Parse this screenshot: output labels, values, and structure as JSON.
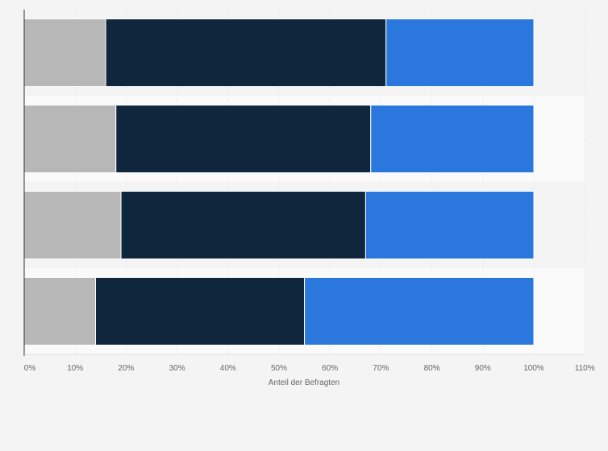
{
  "chart_data": {
    "type": "bar",
    "orientation": "horizontal",
    "stacked": true,
    "categories": [
      "",
      "",
      "",
      ""
    ],
    "series": [
      {
        "values": [
          16,
          18,
          19,
          14
        ],
        "color": "#b7b7b7"
      },
      {
        "values": [
          55,
          50,
          48,
          41
        ],
        "color": "#0f263d"
      },
      {
        "values": [
          29,
          32,
          33,
          45
        ],
        "color": "#2a78de"
      }
    ],
    "xlabel": "Anteil der Befragten",
    "ylabel": "",
    "xlim": [
      0,
      110
    ],
    "xticks": [
      "0%",
      "10%",
      "20%",
      "30%",
      "40%",
      "50%",
      "60%",
      "70%",
      "80%",
      "90%",
      "100%",
      "110%"
    ],
    "grid": true,
    "legend": "none"
  }
}
